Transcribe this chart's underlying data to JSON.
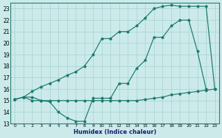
{
  "xlabel": "Humidex (Indice chaleur)",
  "bg_color": "#cceaea",
  "grid_color": "#aad4d4",
  "line_color": "#1a7a6e",
  "xlim": [
    -0.5,
    23.5
  ],
  "ylim": [
    13,
    23.5
  ],
  "xticks": [
    0,
    1,
    2,
    3,
    4,
    5,
    6,
    7,
    8,
    9,
    10,
    11,
    12,
    13,
    14,
    15,
    16,
    17,
    18,
    19,
    20,
    21,
    22,
    23
  ],
  "yticks": [
    13,
    14,
    15,
    16,
    17,
    18,
    19,
    20,
    21,
    22,
    23
  ],
  "line1_x": [
    0,
    1,
    2,
    3,
    4,
    5,
    6,
    7,
    8,
    9,
    10,
    11,
    12,
    13,
    14,
    15,
    16,
    17,
    18,
    19,
    20,
    21,
    22,
    23
  ],
  "line1_y": [
    15.1,
    15.3,
    15.3,
    15.0,
    15.0,
    15.0,
    15.0,
    15.0,
    15.0,
    15.0,
    15.0,
    15.0,
    15.0,
    15.0,
    15.0,
    15.1,
    15.2,
    15.3,
    15.5,
    15.6,
    15.7,
    15.8,
    15.9,
    16.0
  ],
  "line2_x": [
    0,
    1,
    2,
    3,
    4,
    5,
    6,
    7,
    8,
    9,
    10,
    11,
    12,
    13,
    14,
    15,
    16,
    17,
    18,
    19,
    20,
    21,
    22
  ],
  "line2_y": [
    15.1,
    15.3,
    15.0,
    15.0,
    14.9,
    14.0,
    13.5,
    13.2,
    13.2,
    15.2,
    15.2,
    15.2,
    16.5,
    16.5,
    17.8,
    18.5,
    20.5,
    20.5,
    21.5,
    22.0,
    22.0,
    19.3,
    16.0
  ],
  "line3_x": [
    0,
    1,
    2,
    3,
    4,
    5,
    6,
    7,
    8,
    9,
    10,
    11,
    12,
    13,
    14,
    15,
    16,
    17,
    18,
    19,
    20,
    21,
    22,
    23
  ],
  "line3_y": [
    15.1,
    15.3,
    15.8,
    16.2,
    16.5,
    16.8,
    17.2,
    17.5,
    18.0,
    19.0,
    20.4,
    20.4,
    21.0,
    21.0,
    21.5,
    22.2,
    23.0,
    23.2,
    23.3,
    23.2,
    23.2,
    23.2,
    23.2,
    16.0
  ]
}
